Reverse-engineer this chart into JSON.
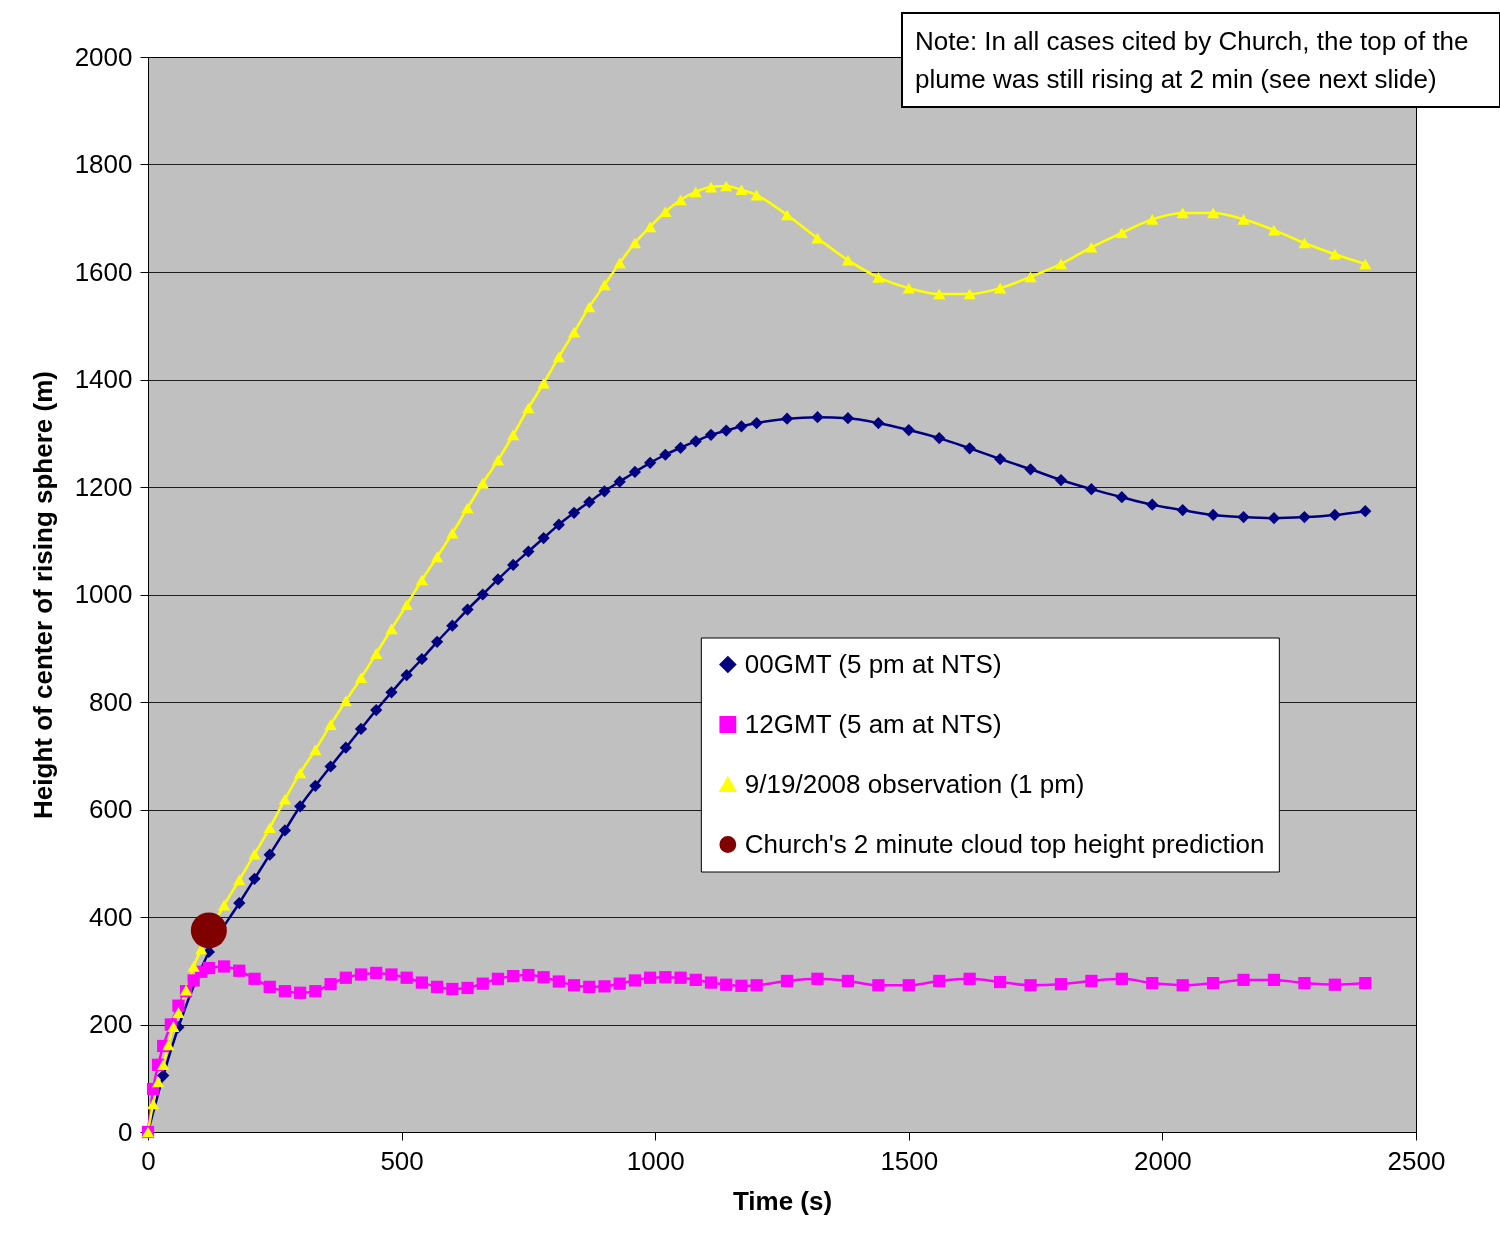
{
  "chart_data": {
    "type": "line",
    "xlabel": "Time (s)",
    "ylabel": "Height of center of rising sphere (m)",
    "xlim": [
      0,
      2500
    ],
    "xticks": [
      0,
      500,
      1000,
      1500,
      2000,
      2500
    ],
    "ylim": [
      0,
      2000
    ],
    "yticks": [
      0,
      200,
      400,
      600,
      800,
      1000,
      1200,
      1400,
      1600,
      1800,
      2000
    ],
    "grid": "y",
    "legend": "right",
    "annotations": [
      "Note: In all cases cited by Church, the top of the plume was still rising at 2 min (see next slide)"
    ],
    "series": [
      {
        "name": "00GMT (5 pm at NTS)",
        "color": "#000080",
        "marker": "diamond",
        "x": [
          0,
          30,
          60,
          120,
          180,
          210,
          240,
          270,
          300,
          330,
          360,
          390,
          420,
          450,
          480,
          510,
          540,
          570,
          600,
          630,
          660,
          690,
          720,
          750,
          780,
          810,
          840,
          870,
          900,
          930,
          960,
          990,
          1020,
          1050,
          1080,
          1110,
          1140,
          1170,
          1200,
          1260,
          1320,
          1380,
          1440,
          1500,
          1560,
          1620,
          1680,
          1740,
          1800,
          1860,
          1920,
          1980,
          2040,
          2100,
          2160,
          2220,
          2280,
          2340,
          2400
        ],
        "values": [
          0,
          105,
          195,
          335,
          426,
          471,
          516,
          561,
          606,
          644,
          680,
          715,
          750,
          785,
          818,
          850,
          880,
          912,
          942,
          972,
          1000,
          1028,
          1055,
          1080,
          1105,
          1130,
          1152,
          1172,
          1192,
          1210,
          1228,
          1245,
          1260,
          1273,
          1285,
          1297,
          1305,
          1313,
          1319,
          1327,
          1330,
          1328,
          1319,
          1306,
          1291,
          1272,
          1252,
          1233,
          1213,
          1196,
          1181,
          1167,
          1157,
          1148,
          1144,
          1142,
          1144,
          1148,
          1155
        ]
      },
      {
        "name": "12GMT (5 am at NTS)",
        "color": "#ff00ff",
        "marker": "square",
        "x": [
          0,
          10,
          20,
          30,
          45,
          60,
          75,
          90,
          105,
          120,
          150,
          180,
          210,
          240,
          270,
          300,
          330,
          360,
          390,
          420,
          450,
          480,
          510,
          540,
          570,
          600,
          630,
          660,
          690,
          720,
          750,
          780,
          810,
          840,
          870,
          900,
          930,
          960,
          990,
          1020,
          1050,
          1080,
          1110,
          1140,
          1170,
          1200,
          1260,
          1320,
          1380,
          1440,
          1500,
          1560,
          1620,
          1680,
          1740,
          1800,
          1860,
          1920,
          1980,
          2040,
          2100,
          2160,
          2220,
          2280,
          2340,
          2400
        ],
        "values": [
          0,
          80,
          125,
          160,
          200,
          235,
          262,
          282,
          298,
          305,
          308,
          300,
          285,
          270,
          262,
          259,
          262,
          275,
          287,
          293,
          296,
          293,
          287,
          278,
          270,
          266,
          268,
          276,
          285,
          290,
          292,
          288,
          280,
          273,
          270,
          271,
          276,
          282,
          287,
          288,
          287,
          283,
          278,
          274,
          272,
          273,
          281,
          285,
          281,
          273,
          273,
          281,
          285,
          279,
          273,
          275,
          281,
          285,
          277,
          273,
          277,
          283,
          283,
          277,
          274,
          277
        ]
      },
      {
        "name": "9/19/2008 observation (1 pm)",
        "color": "#ffff00",
        "marker": "triangle",
        "x": [
          0,
          10,
          20,
          30,
          40,
          50,
          60,
          75,
          90,
          105,
          150,
          180,
          210,
          240,
          270,
          300,
          330,
          360,
          390,
          420,
          450,
          480,
          510,
          540,
          570,
          600,
          630,
          660,
          690,
          720,
          750,
          780,
          810,
          840,
          870,
          900,
          930,
          960,
          990,
          1020,
          1050,
          1080,
          1110,
          1140,
          1170,
          1200,
          1260,
          1320,
          1380,
          1440,
          1500,
          1560,
          1620,
          1680,
          1740,
          1800,
          1860,
          1920,
          1980,
          2040,
          2100,
          2160,
          2220,
          2280,
          2340,
          2400
        ],
        "values": [
          0,
          52,
          93,
          125,
          162,
          196,
          222,
          264,
          308,
          340,
          422,
          469,
          517,
          566,
          619,
          668,
          711,
          758,
          802,
          845,
          890,
          936,
          981,
          1027,
          1070,
          1114,
          1161,
          1207,
          1250,
          1297,
          1347,
          1393,
          1442,
          1488,
          1535,
          1576,
          1617,
          1654,
          1684,
          1712,
          1734,
          1749,
          1758,
          1760,
          1753,
          1743,
          1706,
          1663,
          1622,
          1590,
          1570,
          1559,
          1559,
          1570,
          1591,
          1615,
          1646,
          1673,
          1698,
          1710,
          1710,
          1698,
          1678,
          1654,
          1633,
          1615
        ]
      },
      {
        "name": "Church's 2 minute cloud top height prediction",
        "type": "scatter",
        "color": "#800000",
        "marker": "circle",
        "x": [
          120
        ],
        "values": [
          375
        ]
      }
    ]
  }
}
